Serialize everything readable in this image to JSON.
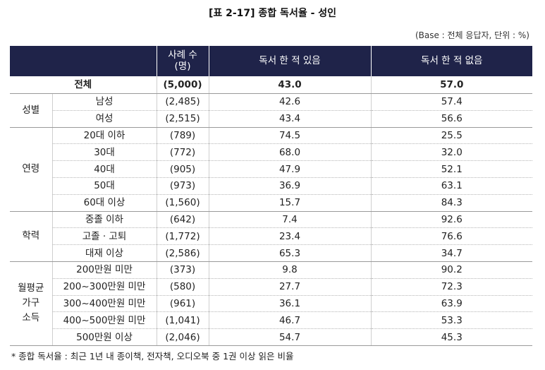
{
  "title": "[표 2-17] 종합 독서율 - 성인",
  "base_note": "(Base : 전체 응답자, 단위 : %)",
  "header": {
    "group": "",
    "category": "",
    "count": "사례 수\n(명)",
    "read": "독서 한 적 있음",
    "not_read": "독서 한 적 없음"
  },
  "total": {
    "label": "전체",
    "count": "(5,000)",
    "read": "43.0",
    "not_read": "57.0"
  },
  "groups": [
    {
      "label": "성별",
      "rows": [
        {
          "label": "남성",
          "count": "(2,485)",
          "read": "42.6",
          "not_read": "57.4"
        },
        {
          "label": "여성",
          "count": "(2,515)",
          "read": "43.4",
          "not_read": "56.6"
        }
      ]
    },
    {
      "label": "연령",
      "rows": [
        {
          "label": "20대 이하",
          "count": "(789)",
          "read": "74.5",
          "not_read": "25.5"
        },
        {
          "label": "30대",
          "count": "(772)",
          "read": "68.0",
          "not_read": "32.0"
        },
        {
          "label": "40대",
          "count": "(905)",
          "read": "47.9",
          "not_read": "52.1"
        },
        {
          "label": "50대",
          "count": "(973)",
          "read": "36.9",
          "not_read": "63.1"
        },
        {
          "label": "60대 이상",
          "count": "(1,560)",
          "read": "15.7",
          "not_read": "84.3"
        }
      ]
    },
    {
      "label": "학력",
      "rows": [
        {
          "label": "중졸 이하",
          "count": "(642)",
          "read": "7.4",
          "not_read": "92.6"
        },
        {
          "label": "고졸 · 고퇴",
          "count": "(1,772)",
          "read": "23.4",
          "not_read": "76.6"
        },
        {
          "label": "대재 이상",
          "count": "(2,586)",
          "read": "65.3",
          "not_read": "34.7"
        }
      ]
    },
    {
      "label": "월평균\n가구\n소득",
      "rows": [
        {
          "label": "200만원 미만",
          "count": "(373)",
          "read": "9.8",
          "not_read": "90.2"
        },
        {
          "label": "200~300만원 미만",
          "count": "(580)",
          "read": "27.7",
          "not_read": "72.3"
        },
        {
          "label": "300~400만원 미만",
          "count": "(961)",
          "read": "36.1",
          "not_read": "63.9"
        },
        {
          "label": "400~500만원 미만",
          "count": "(1,041)",
          "read": "46.7",
          "not_read": "53.3"
        },
        {
          "label": "500만원 이상",
          "count": "(2,046)",
          "read": "54.7",
          "not_read": "45.3"
        }
      ]
    }
  ],
  "footnote": "* 종합 독서율 : 최근 1년 내 종이책, 전자책, 오디오북 중 1권 이상 읽은 비율"
}
